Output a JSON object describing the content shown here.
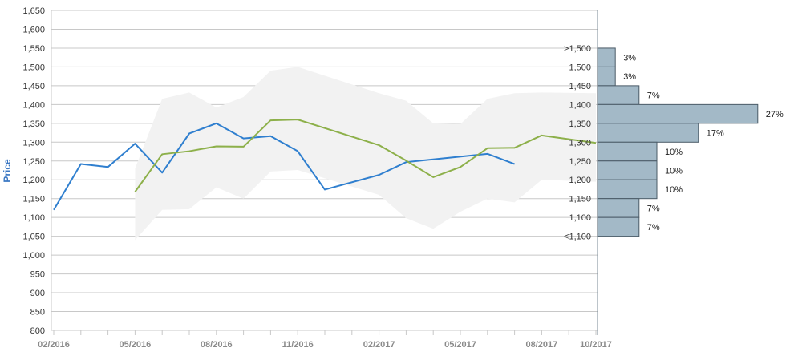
{
  "chart_data": {
    "type": "line",
    "ylabel": "Price",
    "ylim": [
      800,
      1650
    ],
    "y_ticks": [
      800,
      850,
      900,
      950,
      1000,
      1050,
      1100,
      1150,
      1200,
      1250,
      1300,
      1350,
      1400,
      1450,
      1500,
      1550,
      1600,
      1650
    ],
    "y_tick_labels": [
      "800",
      "850",
      "900",
      "950",
      "1,000",
      "1,050",
      "1,100",
      "1,150",
      "1,200",
      "1,250",
      "1,300",
      "1,350",
      "1,400",
      "1,450",
      "1,500",
      "1,550",
      "1,600",
      "1,650"
    ],
    "x_tick_labels": [
      "02/2016",
      "05/2016",
      "08/2016",
      "11/2016",
      "02/2017",
      "05/2017",
      "08/2017",
      "10/2017"
    ],
    "x_months": [
      "2016-02",
      "2016-03",
      "2016-04",
      "2016-05",
      "2016-06",
      "2016-07",
      "2016-08",
      "2016-09",
      "2016-10",
      "2016-11",
      "2016-12",
      "2017-01",
      "2017-02",
      "2017-03",
      "2017-04",
      "2017-05",
      "2017-06",
      "2017-07",
      "2017-08",
      "2017-09",
      "2017-10"
    ],
    "grid": true,
    "colors": {
      "series_1": "#2f7fcf",
      "series_2": "#8db04a",
      "band": "#f2f2f2",
      "histogram": "#a3b9c7",
      "histogram_border": "#4a5a66",
      "axis_label": "#3b78c3"
    },
    "series": [
      {
        "values": [
          {
            "month": "2016-02",
            "y": 1120
          },
          {
            "month": "2016-03",
            "y": 1242
          },
          {
            "month": "2016-04",
            "y": 1234
          },
          {
            "month": "2016-05",
            "y": 1296
          },
          {
            "month": "2016-06",
            "y": 1219
          },
          {
            "month": "2016-07",
            "y": 1323
          },
          {
            "month": "2016-08",
            "y": 1350
          },
          {
            "month": "2016-09",
            "y": 1310
          },
          {
            "month": "2016-10",
            "y": 1316
          },
          {
            "month": "2016-11",
            "y": 1276
          },
          {
            "month": "2016-12",
            "y": 1174
          },
          {
            "month": "2017-02",
            "y": 1213
          },
          {
            "month": "2017-03",
            "y": 1247
          },
          {
            "month": "2017-06",
            "y": 1269
          },
          {
            "month": "2017-07",
            "y": 1242
          }
        ]
      },
      {
        "values": [
          {
            "month": "2016-05",
            "y": 1168
          },
          {
            "month": "2016-06",
            "y": 1268
          },
          {
            "month": "2016-07",
            "y": 1276
          },
          {
            "month": "2016-08",
            "y": 1289
          },
          {
            "month": "2016-09",
            "y": 1288
          },
          {
            "month": "2016-10",
            "y": 1358
          },
          {
            "month": "2016-11",
            "y": 1360
          },
          {
            "month": "2017-02",
            "y": 1292
          },
          {
            "month": "2017-03",
            "y": 1251
          },
          {
            "month": "2017-04",
            "y": 1207
          },
          {
            "month": "2017-05",
            "y": 1234
          },
          {
            "month": "2017-06",
            "y": 1284
          },
          {
            "month": "2017-07",
            "y": 1285
          },
          {
            "month": "2017-08",
            "y": 1318
          },
          {
            "month": "2017-10",
            "y": 1298
          }
        ]
      }
    ],
    "range_band": {
      "upper": [
        {
          "month": "2016-05",
          "y": 1230
        },
        {
          "month": "2016-06",
          "y": 1415
        },
        {
          "month": "2016-07",
          "y": 1432
        },
        {
          "month": "2016-08",
          "y": 1392
        },
        {
          "month": "2016-09",
          "y": 1420
        },
        {
          "month": "2016-10",
          "y": 1490
        },
        {
          "month": "2016-11",
          "y": 1500
        },
        {
          "month": "2017-02",
          "y": 1430
        },
        {
          "month": "2017-03",
          "y": 1410
        },
        {
          "month": "2017-04",
          "y": 1350
        },
        {
          "month": "2017-05",
          "y": 1348
        },
        {
          "month": "2017-06",
          "y": 1415
        },
        {
          "month": "2017-07",
          "y": 1430
        },
        {
          "month": "2017-08",
          "y": 1432
        },
        {
          "month": "2017-10",
          "y": 1430
        }
      ],
      "lower": [
        {
          "month": "2016-05",
          "y": 1040
        },
        {
          "month": "2016-06",
          "y": 1120
        },
        {
          "month": "2016-07",
          "y": 1122
        },
        {
          "month": "2016-08",
          "y": 1180
        },
        {
          "month": "2016-09",
          "y": 1150
        },
        {
          "month": "2016-10",
          "y": 1222
        },
        {
          "month": "2016-11",
          "y": 1226
        },
        {
          "month": "2017-02",
          "y": 1160
        },
        {
          "month": "2017-03",
          "y": 1098
        },
        {
          "month": "2017-04",
          "y": 1070
        },
        {
          "month": "2017-05",
          "y": 1115
        },
        {
          "month": "2017-06",
          "y": 1150
        },
        {
          "month": "2017-07",
          "y": 1140
        },
        {
          "month": "2017-08",
          "y": 1200
        },
        {
          "month": "2017-10",
          "y": 1195
        }
      ]
    },
    "histogram": {
      "bins": [
        {
          "label": ">1,500",
          "from": 1500,
          "to": 1550,
          "percent": 3,
          "percent_label": "3%"
        },
        {
          "label": "1,500",
          "from": 1450,
          "to": 1500,
          "percent": 3,
          "percent_label": "3%"
        },
        {
          "label": "1,450",
          "from": 1400,
          "to": 1450,
          "percent": 7,
          "percent_label": "7%"
        },
        {
          "label": "1,400",
          "from": 1350,
          "to": 1400,
          "percent": 27,
          "percent_label": "27%"
        },
        {
          "label": "1,350",
          "from": 1300,
          "to": 1350,
          "percent": 17,
          "percent_label": "17%"
        },
        {
          "label": "1,300",
          "from": 1250,
          "to": 1300,
          "percent": 10,
          "percent_label": "10%"
        },
        {
          "label": "1,250",
          "from": 1200,
          "to": 1250,
          "percent": 10,
          "percent_label": "10%"
        },
        {
          "label": "1,200",
          "from": 1150,
          "to": 1200,
          "percent": 10,
          "percent_label": "10%"
        },
        {
          "label": "1,150",
          "from": 1100,
          "to": 1150,
          "percent": 7,
          "percent_label": "7%"
        },
        {
          "label": "1,100",
          "from": 1050,
          "to": 1100,
          "percent": 7,
          "percent_label": "7%"
        }
      ],
      "bottom_label": "<1,100"
    }
  }
}
